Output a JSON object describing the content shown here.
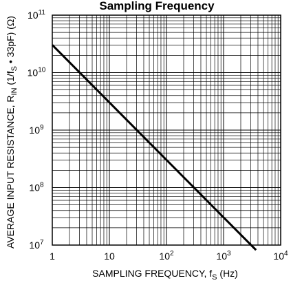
{
  "chart_data": {
    "type": "line",
    "title": "Sampling Frequency",
    "xlabel": {
      "main": "SAMPLING FREQUENCY, f",
      "sub": "S",
      "tail": " (Hz)"
    },
    "ylabel": {
      "p1": "AVERAGE INPUT RESISTANCE, R",
      "sub1": "IN",
      "p2": " (1/f",
      "sub2": "S",
      "p3": " • 33pF) (Ω)"
    },
    "x_scale": "log",
    "y_scale": "log",
    "xlim": [
      1,
      10000
    ],
    "ylim": [
      10000000,
      100000000000
    ],
    "x_ticks": [
      {
        "value": 1,
        "base": "1",
        "exp": ""
      },
      {
        "value": 10,
        "base": "10",
        "exp": ""
      },
      {
        "value": 100,
        "base": "10",
        "exp": "2"
      },
      {
        "value": 1000,
        "base": "10",
        "exp": "3"
      },
      {
        "value": 10000,
        "base": "10",
        "exp": "4"
      }
    ],
    "y_ticks": [
      {
        "value": 10000000,
        "base": "10",
        "exp": "7"
      },
      {
        "value": 100000000,
        "base": "10",
        "exp": "8"
      },
      {
        "value": 1000000000,
        "base": "10",
        "exp": "9"
      },
      {
        "value": 10000000000,
        "base": "10",
        "exp": "10"
      },
      {
        "value": 100000000000,
        "base": "10",
        "exp": "11"
      }
    ],
    "grid": true,
    "series": [
      {
        "x": [
          1,
          10,
          100,
          1000,
          3700
        ],
        "y": [
          30300000000,
          3030000000,
          303000000,
          30300000,
          8190000
        ]
      }
    ]
  }
}
